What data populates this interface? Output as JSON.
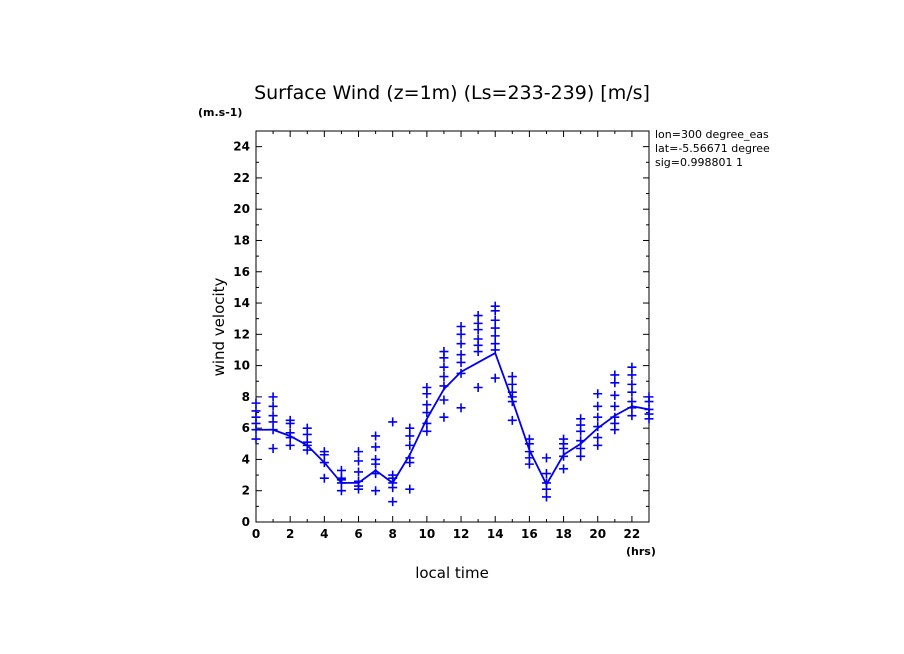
{
  "chart_data": {
    "type": "scatter",
    "title": "Surface Wind (z=1m) (Ls=233-239) [m/s]",
    "xlabel": "local time",
    "ylabel": "wind velocity",
    "x_unit": "(hrs)",
    "y_unit": "(m.s-1)",
    "xlim": [
      0,
      23
    ],
    "ylim": [
      0,
      25
    ],
    "x_ticks": [
      0,
      2,
      4,
      6,
      8,
      10,
      12,
      14,
      16,
      18,
      20,
      22
    ],
    "y_ticks": [
      0,
      2,
      4,
      6,
      8,
      10,
      12,
      14,
      16,
      18,
      20,
      22,
      24
    ],
    "grid": false,
    "info_lines": [
      "lon=300 degree_eas",
      "lat=-5.56671 degree",
      "sig=0.998801 1"
    ],
    "series": [
      {
        "kind": "mean-line",
        "color": "#0000ee",
        "x": [
          0,
          1,
          2,
          3,
          4,
          5,
          6,
          7,
          8,
          9,
          10,
          11,
          12,
          13,
          14,
          15,
          16,
          17,
          18,
          19,
          20,
          21,
          22,
          23
        ],
        "y": [
          5.9,
          5.9,
          5.5,
          4.9,
          3.8,
          2.5,
          2.5,
          3.3,
          2.5,
          4.3,
          6.6,
          8.5,
          9.6,
          10.2,
          10.8,
          7.8,
          4.6,
          2.4,
          4.3,
          5.0,
          6.0,
          6.8,
          7.4,
          7.2
        ]
      },
      {
        "kind": "samples",
        "marker": "+",
        "color": "#0000ee",
        "points": [
          [
            0,
            5.3
          ],
          [
            0,
            5.9
          ],
          [
            0,
            6.3
          ],
          [
            0,
            6.7
          ],
          [
            0,
            7.1
          ],
          [
            0,
            7.6
          ],
          [
            1,
            4.7
          ],
          [
            1,
            5.9
          ],
          [
            1,
            6.4
          ],
          [
            1,
            6.8
          ],
          [
            1,
            7.4
          ],
          [
            1,
            8.0
          ],
          [
            2,
            4.9
          ],
          [
            2,
            5.4
          ],
          [
            2,
            5.7
          ],
          [
            2,
            6.3
          ],
          [
            2,
            6.5
          ],
          [
            3,
            4.6
          ],
          [
            3,
            4.9
          ],
          [
            3,
            5.1
          ],
          [
            3,
            5.6
          ],
          [
            3,
            6.0
          ],
          [
            4,
            2.8
          ],
          [
            4,
            3.8
          ],
          [
            4,
            4.3
          ],
          [
            4,
            4.5
          ],
          [
            5,
            2.0
          ],
          [
            5,
            2.5
          ],
          [
            5,
            2.7
          ],
          [
            5,
            2.8
          ],
          [
            5,
            3.3
          ],
          [
            6,
            2.1
          ],
          [
            6,
            2.3
          ],
          [
            6,
            2.6
          ],
          [
            6,
            3.2
          ],
          [
            6,
            3.9
          ],
          [
            6,
            4.5
          ],
          [
            7,
            2.0
          ],
          [
            7,
            3.1
          ],
          [
            7,
            3.7
          ],
          [
            7,
            4.0
          ],
          [
            7,
            4.8
          ],
          [
            7,
            5.5
          ],
          [
            8,
            1.3
          ],
          [
            8,
            2.2
          ],
          [
            8,
            2.5
          ],
          [
            8,
            2.8
          ],
          [
            8,
            3.0
          ],
          [
            8,
            6.4
          ],
          [
            9,
            2.1
          ],
          [
            9,
            3.8
          ],
          [
            9,
            4.1
          ],
          [
            9,
            4.9
          ],
          [
            9,
            5.5
          ],
          [
            9,
            6.0
          ],
          [
            10,
            5.8
          ],
          [
            10,
            6.3
          ],
          [
            10,
            7.0
          ],
          [
            10,
            7.5
          ],
          [
            10,
            8.2
          ],
          [
            10,
            8.6
          ],
          [
            11,
            6.7
          ],
          [
            11,
            7.8
          ],
          [
            11,
            8.7
          ],
          [
            11,
            9.3
          ],
          [
            11,
            9.9
          ],
          [
            11,
            10.5
          ],
          [
            11,
            10.9
          ],
          [
            12,
            7.3
          ],
          [
            12,
            9.5
          ],
          [
            12,
            10.2
          ],
          [
            12,
            10.7
          ],
          [
            12,
            11.4
          ],
          [
            12,
            12.0
          ],
          [
            12,
            12.5
          ],
          [
            13,
            8.6
          ],
          [
            13,
            10.9
          ],
          [
            13,
            11.3
          ],
          [
            13,
            11.7
          ],
          [
            13,
            12.3
          ],
          [
            13,
            12.7
          ],
          [
            13,
            13.2
          ],
          [
            14,
            9.2
          ],
          [
            14,
            11.0
          ],
          [
            14,
            11.4
          ],
          [
            14,
            11.9
          ],
          [
            14,
            12.4
          ],
          [
            14,
            12.9
          ],
          [
            14,
            13.5
          ],
          [
            14,
            13.8
          ],
          [
            15,
            6.5
          ],
          [
            15,
            7.7
          ],
          [
            15,
            8.0
          ],
          [
            15,
            8.3
          ],
          [
            15,
            8.8
          ],
          [
            15,
            9.3
          ],
          [
            16,
            3.7
          ],
          [
            16,
            4.1
          ],
          [
            16,
            4.5
          ],
          [
            16,
            5.0
          ],
          [
            16,
            5.3
          ],
          [
            17,
            1.6
          ],
          [
            17,
            2.1
          ],
          [
            17,
            2.5
          ],
          [
            17,
            3.1
          ],
          [
            17,
            4.1
          ],
          [
            18,
            3.4
          ],
          [
            18,
            4.2
          ],
          [
            18,
            4.7
          ],
          [
            18,
            5.0
          ],
          [
            18,
            5.3
          ],
          [
            19,
            4.2
          ],
          [
            19,
            4.7
          ],
          [
            19,
            5.2
          ],
          [
            19,
            5.8
          ],
          [
            19,
            6.2
          ],
          [
            19,
            6.6
          ],
          [
            20,
            4.9
          ],
          [
            20,
            5.4
          ],
          [
            20,
            6.1
          ],
          [
            20,
            6.7
          ],
          [
            20,
            7.4
          ],
          [
            20,
            8.2
          ],
          [
            21,
            5.9
          ],
          [
            21,
            6.3
          ],
          [
            21,
            6.7
          ],
          [
            21,
            7.4
          ],
          [
            21,
            8.1
          ],
          [
            21,
            8.9
          ],
          [
            21,
            9.4
          ],
          [
            22,
            6.8
          ],
          [
            22,
            7.3
          ],
          [
            22,
            7.7
          ],
          [
            22,
            8.3
          ],
          [
            22,
            8.8
          ],
          [
            22,
            9.4
          ],
          [
            22,
            9.9
          ],
          [
            23,
            6.6
          ],
          [
            23,
            6.9
          ],
          [
            23,
            7.2
          ],
          [
            23,
            7.7
          ],
          [
            23,
            8.0
          ]
        ]
      }
    ]
  }
}
